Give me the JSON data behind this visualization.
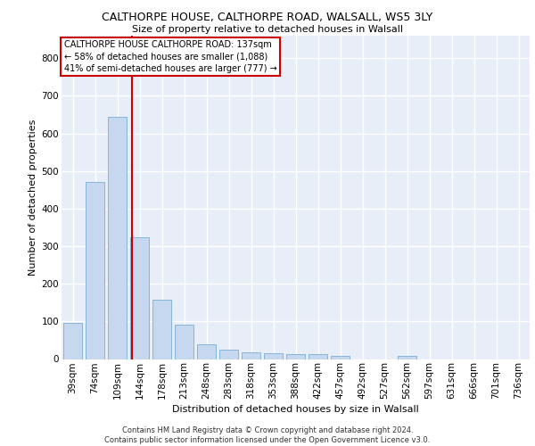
{
  "title": "CALTHORPE HOUSE, CALTHORPE ROAD, WALSALL, WS5 3LY",
  "subtitle": "Size of property relative to detached houses in Walsall",
  "xlabel": "Distribution of detached houses by size in Walsall",
  "ylabel": "Number of detached properties",
  "bar_color": "#c5d8f0",
  "bar_edge_color": "#7aadd4",
  "background_color": "#e8eef8",
  "grid_color": "#ffffff",
  "fig_background": "#ffffff",
  "categories": [
    "39sqm",
    "74sqm",
    "109sqm",
    "144sqm",
    "178sqm",
    "213sqm",
    "248sqm",
    "283sqm",
    "318sqm",
    "353sqm",
    "388sqm",
    "422sqm",
    "457sqm",
    "492sqm",
    "527sqm",
    "562sqm",
    "597sqm",
    "631sqm",
    "666sqm",
    "701sqm",
    "736sqm"
  ],
  "values": [
    95,
    470,
    645,
    325,
    157,
    92,
    40,
    25,
    18,
    15,
    14,
    13,
    9,
    0,
    0,
    8,
    0,
    0,
    0,
    0,
    0
  ],
  "property_line_x": 2.67,
  "annotation_text": "CALTHORPE HOUSE CALTHORPE ROAD: 137sqm\n← 58% of detached houses are smaller (1,088)\n41% of semi-detached houses are larger (777) →",
  "annotation_box_color": "#ffffff",
  "annotation_border_color": "#cc0000",
  "vline_color": "#cc0000",
  "ylim": [
    0,
    860
  ],
  "yticks": [
    0,
    100,
    200,
    300,
    400,
    500,
    600,
    700,
    800
  ],
  "footer": "Contains HM Land Registry data © Crown copyright and database right 2024.\nContains public sector information licensed under the Open Government Licence v3.0.",
  "title_fontsize": 9,
  "subtitle_fontsize": 8,
  "ylabel_fontsize": 8,
  "xlabel_fontsize": 8,
  "tick_fontsize": 7.5,
  "ann_fontsize": 7,
  "footer_fontsize": 6
}
